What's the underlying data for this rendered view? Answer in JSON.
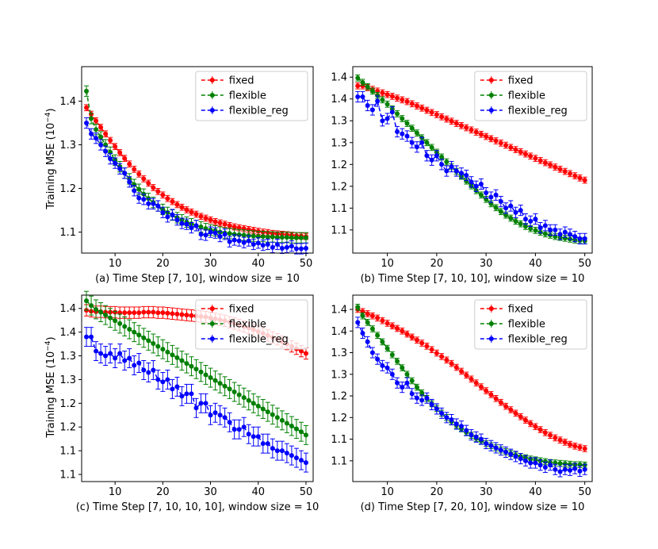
{
  "figure": {
    "ylabel": "Training MSE (10",
    "ylabel_exp": "−4",
    "ylabel_close": ")"
  },
  "colors": {
    "fixed": "#ff0000",
    "flexible": "#008000",
    "flexible_reg": "#0000ff"
  },
  "chart_data": [
    {
      "type": "line",
      "title": "(a) Time Step [7, 10], window size = 10",
      "xlabel": "",
      "ylabel": "Training MSE (10^-4)",
      "xlim": [
        3,
        51.5
      ],
      "ylim": [
        1.052,
        1.479
      ],
      "xticks": [
        10,
        20,
        30,
        40,
        50
      ],
      "yticks": [
        1.1,
        1.2,
        1.3,
        1.4
      ],
      "ytick_labels": [
        "1.1",
        "1.2",
        "1.3",
        "1.4"
      ],
      "legend": "top-right",
      "x": [
        4,
        5,
        6,
        7,
        8,
        9,
        10,
        11,
        12,
        13,
        14,
        15,
        16,
        17,
        18,
        19,
        20,
        21,
        22,
        23,
        24,
        25,
        26,
        27,
        28,
        29,
        30,
        31,
        32,
        33,
        34,
        35,
        36,
        37,
        38,
        39,
        40,
        41,
        42,
        43,
        44,
        45,
        46,
        47,
        48,
        49,
        50
      ],
      "series": [
        {
          "name": "fixed",
          "error": 0.007,
          "values": [
            1.385,
            1.37,
            1.355,
            1.34,
            1.325,
            1.31,
            1.296,
            1.282,
            1.269,
            1.256,
            1.244,
            1.233,
            1.222,
            1.212,
            1.202,
            1.193,
            1.185,
            1.177,
            1.17,
            1.163,
            1.157,
            1.151,
            1.146,
            1.141,
            1.136,
            1.132,
            1.128,
            1.124,
            1.121,
            1.118,
            1.115,
            1.112,
            1.11,
            1.108,
            1.106,
            1.104,
            1.102,
            1.1,
            1.099,
            1.097,
            1.096,
            1.095,
            1.094,
            1.093,
            1.092,
            1.091,
            1.09
          ]
        },
        {
          "name": "flexible",
          "error": 0.012,
          "values": [
            1.423,
            1.36,
            1.335,
            1.318,
            1.3,
            1.283,
            1.265,
            1.25,
            1.235,
            1.222,
            1.209,
            1.198,
            1.187,
            1.177,
            1.168,
            1.16,
            1.152,
            1.145,
            1.139,
            1.133,
            1.128,
            1.123,
            1.119,
            1.115,
            1.112,
            1.108,
            1.105,
            1.103,
            1.1,
            1.098,
            1.097,
            1.095,
            1.094,
            1.093,
            1.092,
            1.091,
            1.09,
            1.09,
            1.089,
            1.089,
            1.088,
            1.088,
            1.088,
            1.087,
            1.087,
            1.087,
            1.087
          ]
        },
        {
          "name": "flexible_reg",
          "error": 0.012,
          "values": [
            1.35,
            1.325,
            1.315,
            1.3,
            1.285,
            1.268,
            1.258,
            1.245,
            1.235,
            1.215,
            1.195,
            1.178,
            1.175,
            1.165,
            1.165,
            1.16,
            1.145,
            1.135,
            1.14,
            1.128,
            1.12,
            1.118,
            1.11,
            1.115,
            1.095,
            1.093,
            1.1,
            1.098,
            1.09,
            1.095,
            1.078,
            1.082,
            1.08,
            1.076,
            1.08,
            1.072,
            1.075,
            1.07,
            1.072,
            1.065,
            1.072,
            1.063,
            1.065,
            1.068,
            1.062,
            1.062,
            1.063
          ]
        }
      ]
    },
    {
      "type": "line",
      "title": "(b) Time Step [7, 10, 10], window size = 10",
      "xlabel": "",
      "ylabel": "",
      "xlim": [
        3,
        51.5
      ],
      "ylim": [
        1.047,
        1.474
      ],
      "xticks": [
        10,
        20,
        30,
        40,
        50
      ],
      "yticks": [
        1.1,
        1.15,
        1.2,
        1.25,
        1.3,
        1.35,
        1.4,
        1.45
      ],
      "ytick_labels": [
        "1.1",
        "1.1",
        "1.2",
        "1.2",
        "1.3",
        "1.3",
        "1.4",
        "1.4"
      ],
      "legend": "top-right",
      "x": [
        4,
        5,
        6,
        7,
        8,
        9,
        10,
        11,
        12,
        13,
        14,
        15,
        16,
        17,
        18,
        19,
        20,
        21,
        22,
        23,
        24,
        25,
        26,
        27,
        28,
        29,
        30,
        31,
        32,
        33,
        34,
        35,
        36,
        37,
        38,
        39,
        40,
        41,
        42,
        43,
        44,
        45,
        46,
        47,
        48,
        49,
        50
      ],
      "series": [
        {
          "name": "fixed",
          "error": 0.007,
          "values": [
            1.43,
            1.43,
            1.426,
            1.422,
            1.418,
            1.414,
            1.41,
            1.406,
            1.402,
            1.398,
            1.394,
            1.389,
            1.384,
            1.379,
            1.374,
            1.369,
            1.364,
            1.359,
            1.354,
            1.349,
            1.344,
            1.339,
            1.334,
            1.329,
            1.324,
            1.319,
            1.314,
            1.309,
            1.304,
            1.299,
            1.294,
            1.289,
            1.284,
            1.279,
            1.274,
            1.269,
            1.264,
            1.259,
            1.254,
            1.249,
            1.244,
            1.239,
            1.234,
            1.229,
            1.224,
            1.219,
            1.214
          ]
        },
        {
          "name": "flexible",
          "error": 0.007,
          "values": [
            1.448,
            1.438,
            1.428,
            1.418,
            1.408,
            1.398,
            1.388,
            1.377,
            1.366,
            1.355,
            1.344,
            1.333,
            1.322,
            1.311,
            1.3,
            1.289,
            1.278,
            1.267,
            1.256,
            1.245,
            1.234,
            1.223,
            1.212,
            1.201,
            1.19,
            1.18,
            1.17,
            1.16,
            1.151,
            1.142,
            1.134,
            1.127,
            1.12,
            1.114,
            1.108,
            1.103,
            1.099,
            1.095,
            1.091,
            1.088,
            1.085,
            1.083,
            1.081,
            1.079,
            1.077,
            1.076,
            1.075
          ]
        },
        {
          "name": "flexible_reg",
          "error": 0.012,
          "values": [
            1.405,
            1.405,
            1.385,
            1.375,
            1.395,
            1.35,
            1.355,
            1.37,
            1.325,
            1.32,
            1.315,
            1.3,
            1.29,
            1.3,
            1.27,
            1.26,
            1.27,
            1.25,
            1.235,
            1.245,
            1.235,
            1.23,
            1.225,
            1.21,
            1.2,
            1.205,
            1.185,
            1.175,
            1.18,
            1.165,
            1.15,
            1.155,
            1.14,
            1.145,
            1.125,
            1.12,
            1.125,
            1.105,
            1.11,
            1.1,
            1.1,
            1.09,
            1.095,
            1.09,
            1.085,
            1.08,
            1.08
          ]
        }
      ]
    },
    {
      "type": "line",
      "title": "(c) Time Step [7, 10, 10, 10], window size = 10",
      "xlabel": "",
      "ylabel": "Training MSE (10^-4)",
      "xlim": [
        3,
        51.5
      ],
      "ylim": [
        1.085,
        1.478
      ],
      "xticks": [
        10,
        20,
        30,
        40,
        50
      ],
      "yticks": [
        1.1,
        1.15,
        1.2,
        1.25,
        1.3,
        1.35,
        1.4,
        1.45
      ],
      "ytick_labels": [
        "1.1",
        "1.1",
        "1.2",
        "1.2",
        "1.3",
        "1.3",
        "1.4",
        "1.4"
      ],
      "legend": "top-right",
      "x": [
        4,
        5,
        6,
        7,
        8,
        9,
        10,
        11,
        12,
        13,
        14,
        15,
        16,
        17,
        18,
        19,
        20,
        21,
        22,
        23,
        24,
        25,
        26,
        27,
        28,
        29,
        30,
        31,
        32,
        33,
        34,
        35,
        36,
        37,
        38,
        39,
        40,
        41,
        42,
        43,
        44,
        45,
        46,
        47,
        48,
        49,
        50
      ],
      "series": [
        {
          "name": "fixed",
          "error": 0.012,
          "values": [
            1.446,
            1.444,
            1.443,
            1.443,
            1.442,
            1.442,
            1.442,
            1.441,
            1.441,
            1.441,
            1.441,
            1.441,
            1.442,
            1.442,
            1.442,
            1.441,
            1.441,
            1.44,
            1.439,
            1.438,
            1.437,
            1.436,
            1.435,
            1.434,
            1.433,
            1.432,
            1.43,
            1.428,
            1.426,
            1.424,
            1.421,
            1.418,
            1.415,
            1.412,
            1.409,
            1.405,
            1.401,
            1.397,
            1.393,
            1.389,
            1.385,
            1.38,
            1.375,
            1.37,
            1.365,
            1.36,
            1.355
          ]
        },
        {
          "name": "flexible",
          "error": 0.02,
          "values": [
            1.466,
            1.456,
            1.448,
            1.442,
            1.436,
            1.43,
            1.424,
            1.418,
            1.412,
            1.406,
            1.4,
            1.394,
            1.388,
            1.382,
            1.376,
            1.37,
            1.364,
            1.358,
            1.352,
            1.346,
            1.34,
            1.334,
            1.328,
            1.322,
            1.316,
            1.31,
            1.304,
            1.298,
            1.292,
            1.286,
            1.28,
            1.274,
            1.268,
            1.262,
            1.256,
            1.25,
            1.244,
            1.238,
            1.232,
            1.226,
            1.22,
            1.214,
            1.208,
            1.202,
            1.196,
            1.19,
            1.183
          ]
        },
        {
          "name": "flexible_reg",
          "error": 0.02,
          "values": [
            1.39,
            1.39,
            1.36,
            1.355,
            1.35,
            1.355,
            1.345,
            1.355,
            1.34,
            1.345,
            1.33,
            1.335,
            1.32,
            1.315,
            1.32,
            1.3,
            1.295,
            1.3,
            1.28,
            1.285,
            1.265,
            1.27,
            1.27,
            1.24,
            1.25,
            1.25,
            1.225,
            1.23,
            1.225,
            1.22,
            1.21,
            1.195,
            1.195,
            1.2,
            1.185,
            1.18,
            1.18,
            1.165,
            1.165,
            1.155,
            1.15,
            1.15,
            1.145,
            1.14,
            1.135,
            1.13,
            1.125
          ]
        }
      ]
    },
    {
      "type": "line",
      "title": "(d) Time Step [7, 20, 10], window size = 10",
      "xlabel": "",
      "ylabel": "",
      "xlim": [
        3,
        51.5
      ],
      "ylim": [
        1.052,
        1.483
      ],
      "xticks": [
        10,
        20,
        30,
        40,
        50
      ],
      "yticks": [
        1.1,
        1.15,
        1.2,
        1.25,
        1.3,
        1.35,
        1.4,
        1.45
      ],
      "ytick_labels": [
        "1.1",
        "1.1",
        "1.2",
        "1.2",
        "1.3",
        "1.3",
        "1.4",
        "1.4"
      ],
      "legend": "top-right",
      "x": [
        4,
        5,
        6,
        7,
        8,
        9,
        10,
        11,
        12,
        13,
        14,
        15,
        16,
        17,
        18,
        19,
        20,
        21,
        22,
        23,
        24,
        25,
        26,
        27,
        28,
        29,
        30,
        31,
        32,
        33,
        34,
        35,
        36,
        37,
        38,
        39,
        40,
        41,
        42,
        43,
        44,
        45,
        46,
        47,
        48,
        49,
        50
      ],
      "series": [
        {
          "name": "fixed",
          "error": 0.007,
          "values": [
            1.45,
            1.445,
            1.44,
            1.435,
            1.43,
            1.424,
            1.418,
            1.412,
            1.406,
            1.4,
            1.393,
            1.386,
            1.379,
            1.372,
            1.365,
            1.357,
            1.349,
            1.341,
            1.333,
            1.325,
            1.316,
            1.307,
            1.298,
            1.289,
            1.28,
            1.271,
            1.262,
            1.253,
            1.244,
            1.235,
            1.226,
            1.218,
            1.21,
            1.202,
            1.194,
            1.186,
            1.179,
            1.172,
            1.165,
            1.159,
            1.153,
            1.148,
            1.143,
            1.138,
            1.134,
            1.131,
            1.128
          ]
        },
        {
          "name": "flexible",
          "error": 0.007,
          "values": [
            1.455,
            1.435,
            1.42,
            1.405,
            1.39,
            1.375,
            1.36,
            1.345,
            1.33,
            1.315,
            1.3,
            1.285,
            1.27,
            1.257,
            1.244,
            1.232,
            1.221,
            1.21,
            1.2,
            1.191,
            1.182,
            1.174,
            1.166,
            1.159,
            1.152,
            1.146,
            1.14,
            1.135,
            1.13,
            1.125,
            1.121,
            1.117,
            1.113,
            1.11,
            1.107,
            1.104,
            1.102,
            1.1,
            1.098,
            1.096,
            1.095,
            1.094,
            1.093,
            1.092,
            1.091,
            1.091,
            1.09
          ]
        },
        {
          "name": "flexible_reg",
          "error": 0.012,
          "values": [
            1.42,
            1.395,
            1.375,
            1.35,
            1.335,
            1.32,
            1.315,
            1.3,
            1.28,
            1.27,
            1.28,
            1.255,
            1.245,
            1.24,
            1.245,
            1.23,
            1.22,
            1.21,
            1.2,
            1.195,
            1.185,
            1.18,
            1.17,
            1.16,
            1.155,
            1.15,
            1.14,
            1.135,
            1.13,
            1.125,
            1.12,
            1.115,
            1.11,
            1.105,
            1.1,
            1.095,
            1.095,
            1.09,
            1.085,
            1.09,
            1.08,
            1.075,
            1.08,
            1.078,
            1.082,
            1.076,
            1.08
          ]
        }
      ]
    }
  ]
}
